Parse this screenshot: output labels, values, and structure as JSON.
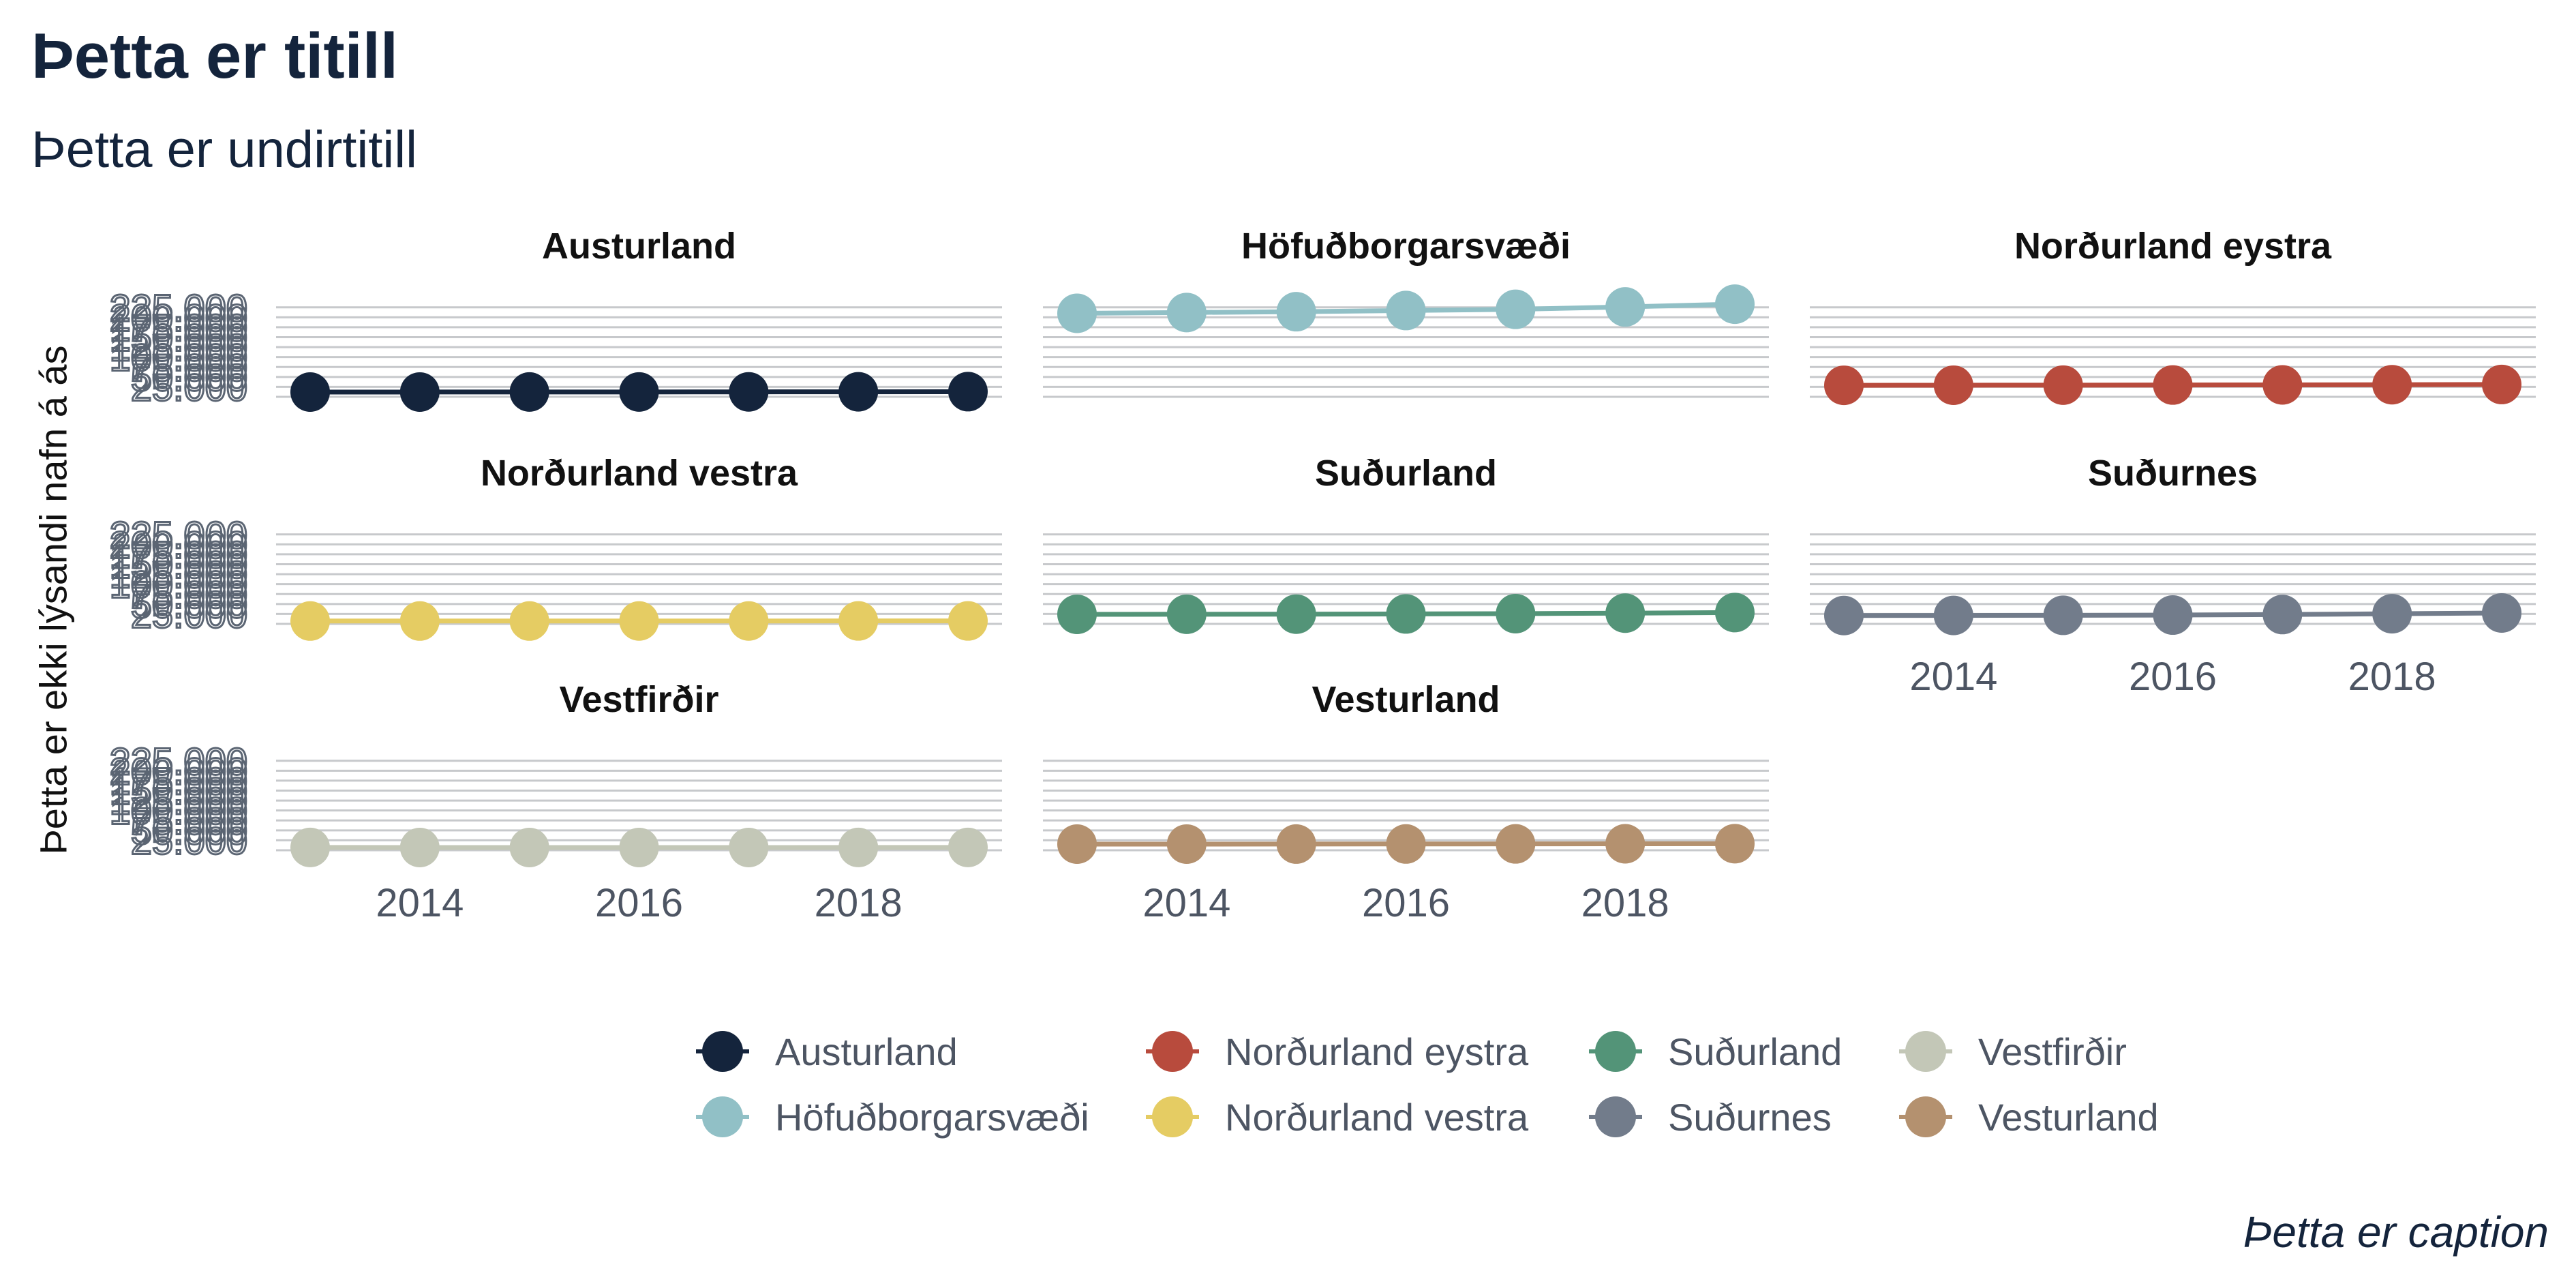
{
  "title": "Þetta er titill",
  "subtitle": "Þetta er undirtitill",
  "caption": "Þetta er caption",
  "chart_data": {
    "type": "line",
    "markers": true,
    "facet": "region",
    "facet_columns": 3,
    "ylabel": "Þetta er ekki lýsandi nafn á ás",
    "xlabel": "",
    "x": [
      2013,
      2014,
      2015,
      2016,
      2017,
      2018,
      2019
    ],
    "x_ticks": [
      2014,
      2016,
      2018
    ],
    "x_tick_labels": [
      "2014",
      "2016",
      "2018"
    ],
    "ylim": [
      0,
      240000
    ],
    "y_ticks": [
      25000,
      50000,
      75000,
      100000,
      125000,
      150000,
      175000,
      200000,
      225000
    ],
    "y_tick_labels": [
      "25.000",
      "50.000",
      "75.000",
      "100.000",
      "125.000",
      "150.000",
      "175.000",
      "200.000",
      "225.000"
    ],
    "grid": true,
    "legend_position": "bottom",
    "series": [
      {
        "name": "Austurland",
        "color": "#14243c",
        "values": [
          12000,
          12100,
          12200,
          12300,
          12500,
          12700,
          13000
        ]
      },
      {
        "name": "Höfuðborgarsvæði",
        "color": "#91c0c6",
        "values": [
          210000,
          212000,
          214000,
          217000,
          220000,
          226000,
          233000
        ]
      },
      {
        "name": "Norðurland eystra",
        "color": "#b84b3d",
        "values": [
          29000,
          29200,
          29400,
          29700,
          30000,
          30500,
          31000
        ]
      },
      {
        "name": "Norðurland vestra",
        "color": "#e5cc63",
        "values": [
          7200,
          7200,
          7200,
          7300,
          7300,
          7400,
          7400
        ]
      },
      {
        "name": "Suðurland",
        "color": "#539478",
        "values": [
          24000,
          24200,
          24500,
          25000,
          25800,
          27000,
          28500
        ]
      },
      {
        "name": "Suðurnes",
        "color": "#727c8b",
        "values": [
          21000,
          21200,
          21600,
          22200,
          23500,
          25500,
          27500
        ]
      },
      {
        "name": "Vestfirðir",
        "color": "#c3c7b7",
        "values": [
          7000,
          6950,
          6900,
          6900,
          6950,
          7000,
          7100
        ]
      },
      {
        "name": "Vesturland",
        "color": "#b4916f",
        "values": [
          15400,
          15500,
          15600,
          15800,
          16000,
          16300,
          16600
        ]
      }
    ]
  }
}
